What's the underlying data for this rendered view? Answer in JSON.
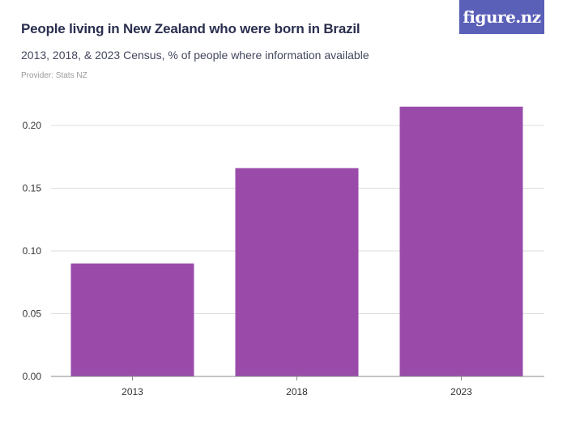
{
  "header": {
    "title": "People living in New Zealand who were born in Brazil",
    "subtitle": "2013, 2018, & 2023 Census, % of people where information available",
    "provider": "Provider: Stats NZ",
    "logo_text": "figure.nz"
  },
  "colors": {
    "bar": "#9a4baa",
    "grid": "#dddddd",
    "axis": "#888888",
    "logo_bg": "#5a5fb8"
  },
  "chart_data": {
    "type": "bar",
    "categories": [
      "2013",
      "2018",
      "2023"
    ],
    "values": [
      0.09,
      0.166,
      0.215
    ],
    "yticks": [
      0,
      0.05,
      0.1,
      0.15,
      0.2
    ],
    "ytick_labels": [
      "0.00",
      "0.05",
      "0.10",
      "0.15",
      "0.20"
    ],
    "ylim": [
      0,
      0.22
    ],
    "title": "People living in New Zealand who were born in Brazil",
    "xlabel": "",
    "ylabel": "",
    "grid": true
  }
}
